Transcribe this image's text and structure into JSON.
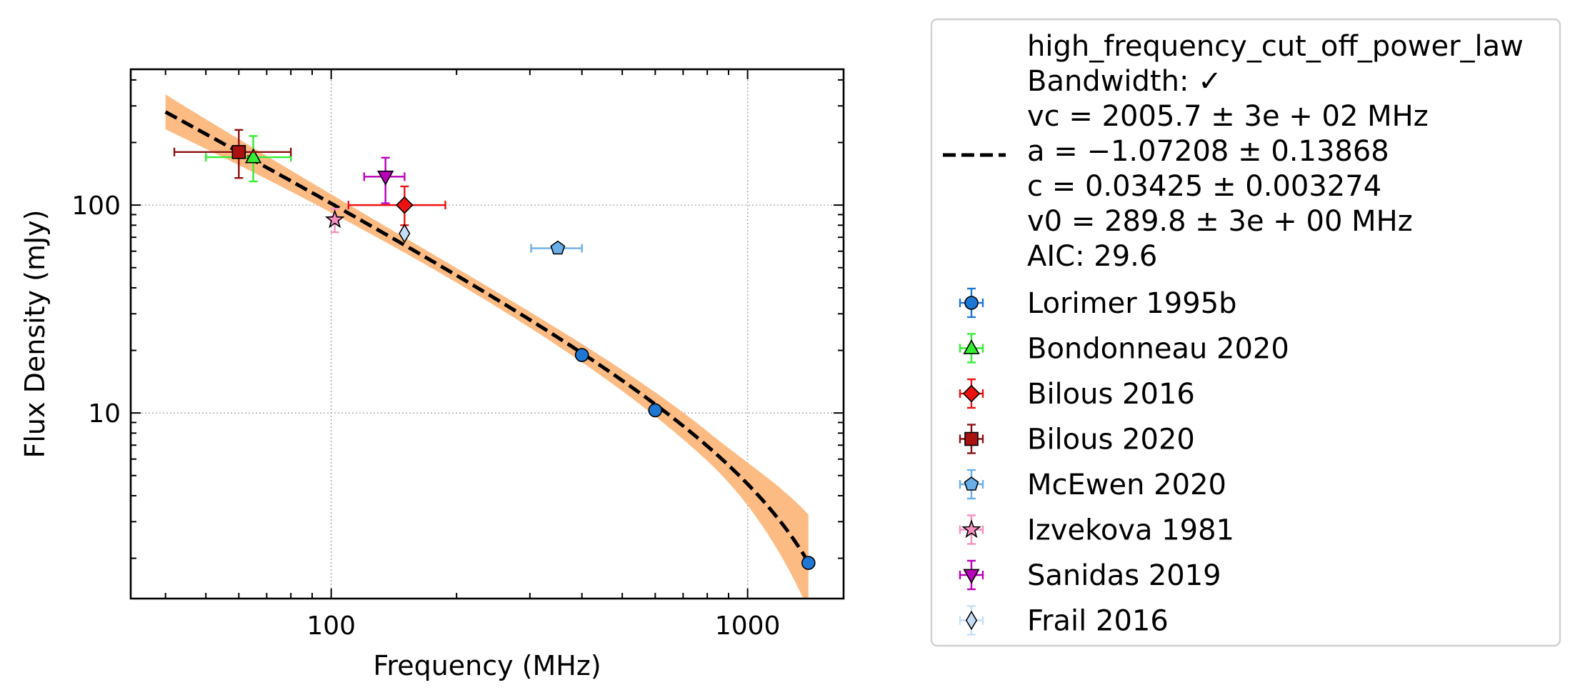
{
  "chart_data": {
    "type": "scatter",
    "xlabel": "Frequency (MHz)",
    "ylabel": "Flux Density (mJy)",
    "xscale": "log",
    "yscale": "log",
    "xlim": [
      33,
      1700
    ],
    "ylim": [
      1.28,
      450
    ],
    "grid": true,
    "legend_position": "outside-right",
    "x_ticks": [
      {
        "value": 100,
        "label": "100"
      },
      {
        "value": 1000,
        "label": "1000"
      }
    ],
    "y_ticks": [
      {
        "value": 10,
        "label": "10"
      },
      {
        "value": 100,
        "label": "100"
      }
    ],
    "fit": {
      "model": "high_frequency_cut_off_power_law",
      "legend_lines": [
        "high_frequency_cut_off_power_law",
        "Bandwidth: ✓",
        "vc = 2005.7 ± 3e + 02 MHz",
        "a = −1.07208 ± 0.13868",
        "c = 0.03425 ± 0.003274",
        "v0 = 289.8 ± 3e + 00 MHz",
        "AIC: 29.6"
      ],
      "vc": 2005.7,
      "a": -1.07208,
      "c": 0.03425,
      "v0": 289.8,
      "x_range": [
        40,
        1400
      ],
      "line_color": "#000000",
      "band_color": "#fdbb84"
    },
    "series": [
      {
        "name": "Lorimer 1995b",
        "marker": "circle",
        "color": "#1f77d4",
        "err_color": "#1f77d4",
        "points": [
          {
            "x": 400,
            "y": 19,
            "xerr": 0,
            "yerr": [
              0,
              0
            ]
          },
          {
            "x": 600,
            "y": 10.3,
            "xerr": 0,
            "yerr": [
              0,
              0
            ]
          },
          {
            "x": 1400,
            "y": 1.9,
            "xerr": 0,
            "yerr": [
              0,
              0
            ]
          }
        ]
      },
      {
        "name": "Bondonneau 2020",
        "marker": "triangle-up",
        "color": "#33ee33",
        "err_color": "#33ee33",
        "points": [
          {
            "x": 65,
            "y": 170,
            "xerr": [
              15,
              15
            ],
            "yerr": [
              40,
              45
            ]
          }
        ]
      },
      {
        "name": "Bilous 2016",
        "marker": "diamond",
        "color": "#ee1111",
        "err_color": "#ee1111",
        "points": [
          {
            "x": 150,
            "y": 100,
            "xerr": [
              40,
              38
            ],
            "yerr": [
              20,
              23
            ]
          }
        ]
      },
      {
        "name": "Bilous 2020",
        "marker": "square",
        "color": "#aa1111",
        "err_color": "#8b1010",
        "points": [
          {
            "x": 60,
            "y": 180,
            "xerr": [
              18,
              20
            ],
            "yerr": [
              45,
              50
            ]
          }
        ]
      },
      {
        "name": "McEwen 2020",
        "marker": "pentagon",
        "color": "#6aaee8",
        "err_color": "#6aaee8",
        "points": [
          {
            "x": 350,
            "y": 62,
            "xerr": [
              48,
              50
            ],
            "yerr": [
              0,
              0
            ]
          }
        ]
      },
      {
        "name": "Izvekova 1981",
        "marker": "star",
        "color": "#f78fc0",
        "err_color": "#f78fc0",
        "points": [
          {
            "x": 102,
            "y": 85,
            "xerr": [
              2,
              2
            ],
            "yerr": [
              11,
              11
            ]
          }
        ]
      },
      {
        "name": "Sanidas 2019",
        "marker": "triangle-down",
        "color": "#bb00bb",
        "err_color": "#bb00bb",
        "points": [
          {
            "x": 135,
            "y": 137,
            "xerr": [
              15,
              15
            ],
            "yerr": [
              35,
              32
            ]
          }
        ]
      },
      {
        "name": "Frail 2016",
        "marker": "thin-diamond",
        "color": "#c6def5",
        "err_color": "#c6def5",
        "points": [
          {
            "x": 150,
            "y": 73,
            "xerr": 0,
            "yerr": [
              0,
              0
            ]
          }
        ]
      }
    ]
  }
}
